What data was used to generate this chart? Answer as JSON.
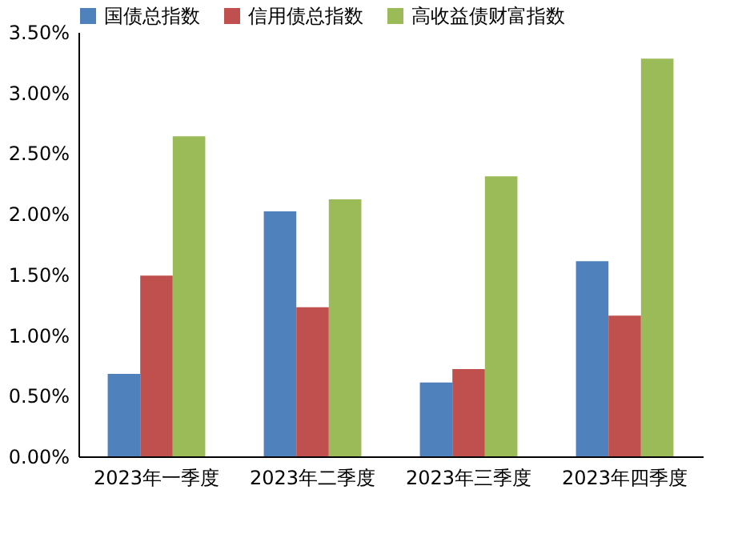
{
  "chart_data": {
    "type": "bar",
    "categories": [
      "2023年一季度",
      "2023年二季度",
      "2023年三季度",
      "2023年四季度"
    ],
    "series": [
      {
        "name": "国债总指数",
        "color": "#4f81bd",
        "values": [
          0.68,
          2.02,
          0.61,
          1.61
        ]
      },
      {
        "name": "信用债总指数",
        "color": "#c0504d",
        "values": [
          1.49,
          1.23,
          0.72,
          1.16
        ]
      },
      {
        "name": "高收益债财富指数",
        "color": "#9bbb59",
        "values": [
          2.64,
          2.12,
          2.31,
          3.28
        ]
      }
    ],
    "ylim": [
      0,
      3.5
    ],
    "yticks": [
      {
        "value": 0,
        "label": "0.00%"
      },
      {
        "value": 0.5,
        "label": "0.50%"
      },
      {
        "value": 1,
        "label": "1.00%"
      },
      {
        "value": 1.5,
        "label": "1.50%"
      },
      {
        "value": 2,
        "label": "2.00%"
      },
      {
        "value": 2.5,
        "label": "2.50%"
      },
      {
        "value": 3,
        "label": "3.00%"
      },
      {
        "value": 3.5,
        "label": "3.50%"
      }
    ],
    "grid": false,
    "legend": "top"
  }
}
